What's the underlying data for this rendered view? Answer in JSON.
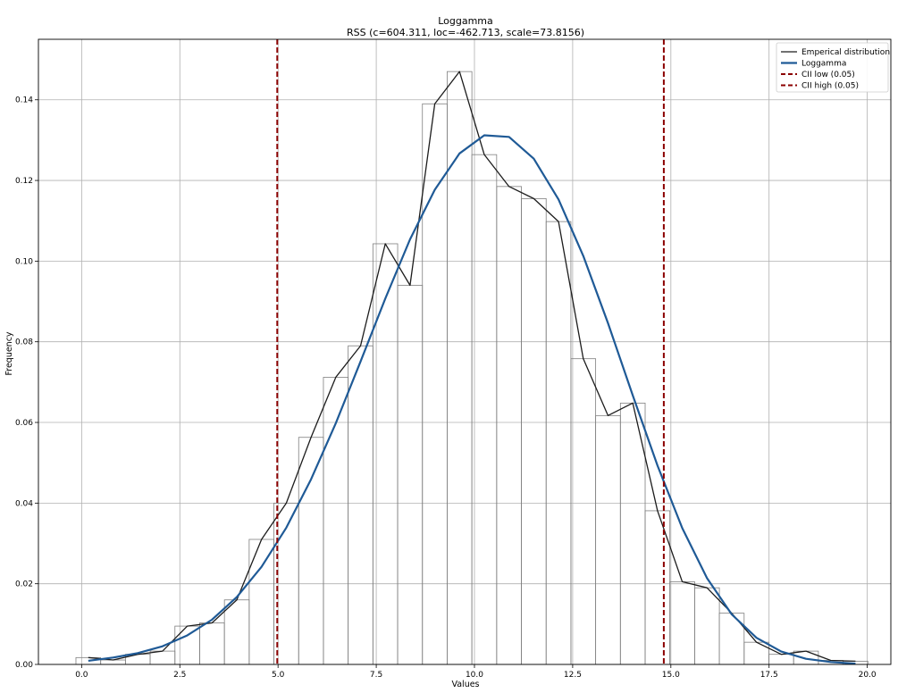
{
  "chart_data": {
    "type": "bar",
    "title": "Loggamma",
    "subtitle": "RSS (c=604.311, loc=-462.713, scale=73.8156)",
    "xlabel": "Values",
    "ylabel": "Frequency",
    "xlim": [
      -1.1,
      20.6
    ],
    "ylim": [
      0,
      0.155
    ],
    "x_ticks": [
      0.0,
      2.5,
      5.0,
      7.5,
      10.0,
      12.5,
      15.0,
      17.5,
      20.0
    ],
    "x_tick_labels": [
      "0.0",
      "2.5",
      "5.0",
      "7.5",
      "10.0",
      "12.5",
      "15.0",
      "17.5",
      "20.0"
    ],
    "y_ticks": [
      0.0,
      0.02,
      0.04,
      0.06,
      0.08,
      0.1,
      0.12,
      0.14
    ],
    "y_tick_labels": [
      "0.00",
      "0.02",
      "0.04",
      "0.06",
      "0.08",
      "0.10",
      "0.12",
      "0.14"
    ],
    "grid": true,
    "legend_position": "top-right",
    "histogram": {
      "bin_width": 0.63,
      "bin_centers": [
        0.17,
        0.8,
        1.43,
        2.06,
        2.69,
        3.32,
        3.95,
        4.58,
        5.21,
        5.84,
        6.47,
        7.1,
        7.73,
        8.36,
        8.99,
        9.62,
        10.25,
        10.88,
        11.51,
        12.14,
        12.77,
        13.4,
        14.03,
        14.66,
        15.29,
        15.92,
        16.55,
        17.18,
        17.81,
        18.44,
        19.07,
        19.7
      ],
      "values": [
        0.0017,
        0.0011,
        0.0025,
        0.0033,
        0.0095,
        0.0103,
        0.016,
        0.031,
        0.04,
        0.0563,
        0.0712,
        0.079,
        0.1043,
        0.094,
        0.139,
        0.147,
        0.1264,
        0.1185,
        0.1155,
        0.1098,
        0.0758,
        0.0617,
        0.0648,
        0.0381,
        0.0205,
        0.019,
        0.0127,
        0.0055,
        0.0025,
        0.0033,
        0.001,
        0.0008
      ],
      "color": "#7f7f7f"
    },
    "series": [
      {
        "name": "Emperical distribution",
        "type": "line",
        "color": "#1c1c1c",
        "x": [
          0.17,
          0.8,
          1.43,
          2.06,
          2.69,
          3.32,
          3.95,
          4.58,
          5.21,
          5.84,
          6.47,
          7.1,
          7.73,
          8.36,
          8.99,
          9.62,
          10.25,
          10.88,
          11.51,
          12.14,
          12.77,
          13.4,
          14.03,
          14.66,
          15.29,
          15.92,
          16.55,
          17.18,
          17.81,
          18.44,
          19.07,
          19.7
        ],
        "y": [
          0.0017,
          0.0011,
          0.0025,
          0.0033,
          0.0095,
          0.0103,
          0.016,
          0.031,
          0.04,
          0.0563,
          0.0712,
          0.079,
          0.1043,
          0.094,
          0.139,
          0.147,
          0.1264,
          0.1185,
          0.1155,
          0.1098,
          0.0758,
          0.0617,
          0.0648,
          0.0381,
          0.0205,
          0.019,
          0.0127,
          0.0055,
          0.0025,
          0.0033,
          0.001,
          0.0008
        ]
      },
      {
        "name": "Loggamma",
        "type": "line",
        "color": "#1f5a96",
        "x": [
          0.17,
          0.8,
          1.43,
          2.06,
          2.69,
          3.32,
          3.95,
          4.58,
          5.21,
          5.84,
          6.47,
          7.1,
          7.73,
          8.36,
          8.99,
          9.62,
          10.25,
          10.88,
          11.51,
          12.14,
          12.77,
          13.4,
          14.03,
          14.66,
          15.29,
          15.92,
          16.55,
          17.18,
          17.81,
          18.44,
          19.07,
          19.7
        ],
        "y": [
          0.0009,
          0.0017,
          0.0028,
          0.0045,
          0.0072,
          0.0111,
          0.0167,
          0.0242,
          0.0339,
          0.0459,
          0.0598,
          0.0751,
          0.0907,
          0.1054,
          0.1177,
          0.1267,
          0.1312,
          0.1308,
          0.1254,
          0.1153,
          0.1013,
          0.0846,
          0.0667,
          0.0493,
          0.0338,
          0.0214,
          0.0124,
          0.0066,
          0.0032,
          0.0014,
          0.0006,
          0.0002
        ]
      },
      {
        "name": "CII low (0.05)",
        "type": "vline",
        "color": "#8b0000",
        "x": 4.98
      },
      {
        "name": "CII high (0.05)",
        "type": "vline",
        "color": "#8b0000",
        "x": 14.82
      }
    ]
  }
}
